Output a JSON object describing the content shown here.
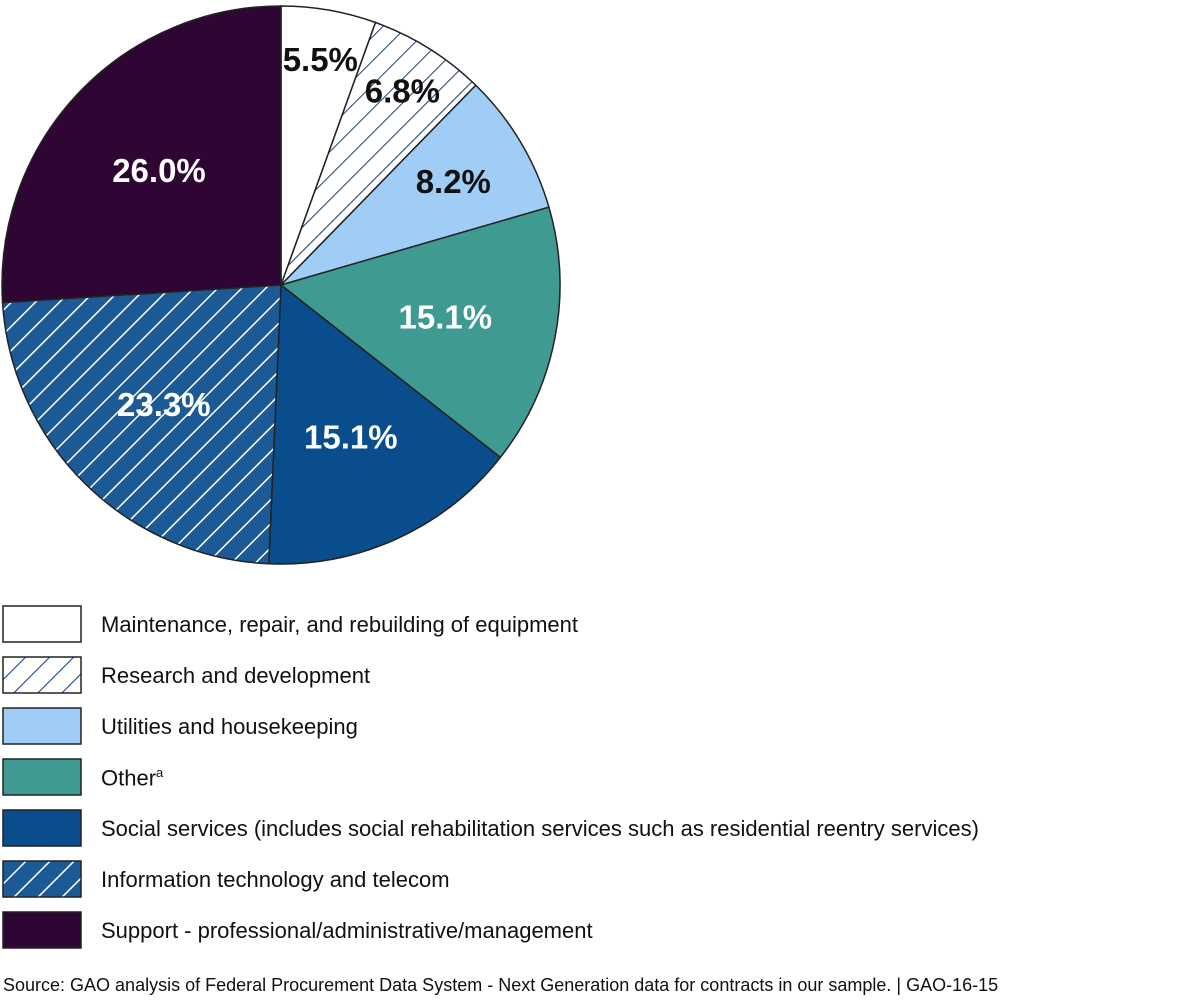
{
  "chart_data": {
    "type": "pie",
    "title": "",
    "start": "top, clockwise",
    "slices": [
      {
        "label": "Maintenance, repair, and rebuilding of equipment",
        "value": 5.5,
        "display": "5.5%",
        "color": "#ffffff",
        "pattern": "none",
        "text_color": "#111111"
      },
      {
        "label": "Research and development",
        "value": 6.8,
        "display": "6.8%",
        "color": "#ffffff",
        "pattern": "hatch-navy",
        "text_color": "#111111"
      },
      {
        "label": "Utilities and housekeeping",
        "value": 8.2,
        "display": "8.2%",
        "color": "#9fcdf6",
        "pattern": "none",
        "text_color": "#111111"
      },
      {
        "label": "Other",
        "label_note": "a",
        "value": 15.1,
        "display": "15.1%",
        "color": "#3f9a92",
        "pattern": "none",
        "text_color": "#ffffff"
      },
      {
        "label": "Social services (includes social rehabilitation services such as residential reentry services)",
        "value": 15.1,
        "display": "15.1%",
        "color": "#0a4d8c",
        "pattern": "none",
        "text_color": "#ffffff"
      },
      {
        "label": "Information technology and telecom",
        "value": 23.3,
        "display": "23.3%",
        "color": "#1b5a95",
        "pattern": "hatch-white",
        "text_color": "#ffffff"
      },
      {
        "label": "Support - professional/administrative/management",
        "value": 26.0,
        "display": "26.0%",
        "color": "#2e0533",
        "pattern": "none",
        "text_color": "#ffffff"
      }
    ],
    "legend_position": "bottom"
  },
  "source": "Source: GAO analysis of Federal Procurement Data System - Next Generation data for contracts in our sample.  |  GAO-16-15"
}
